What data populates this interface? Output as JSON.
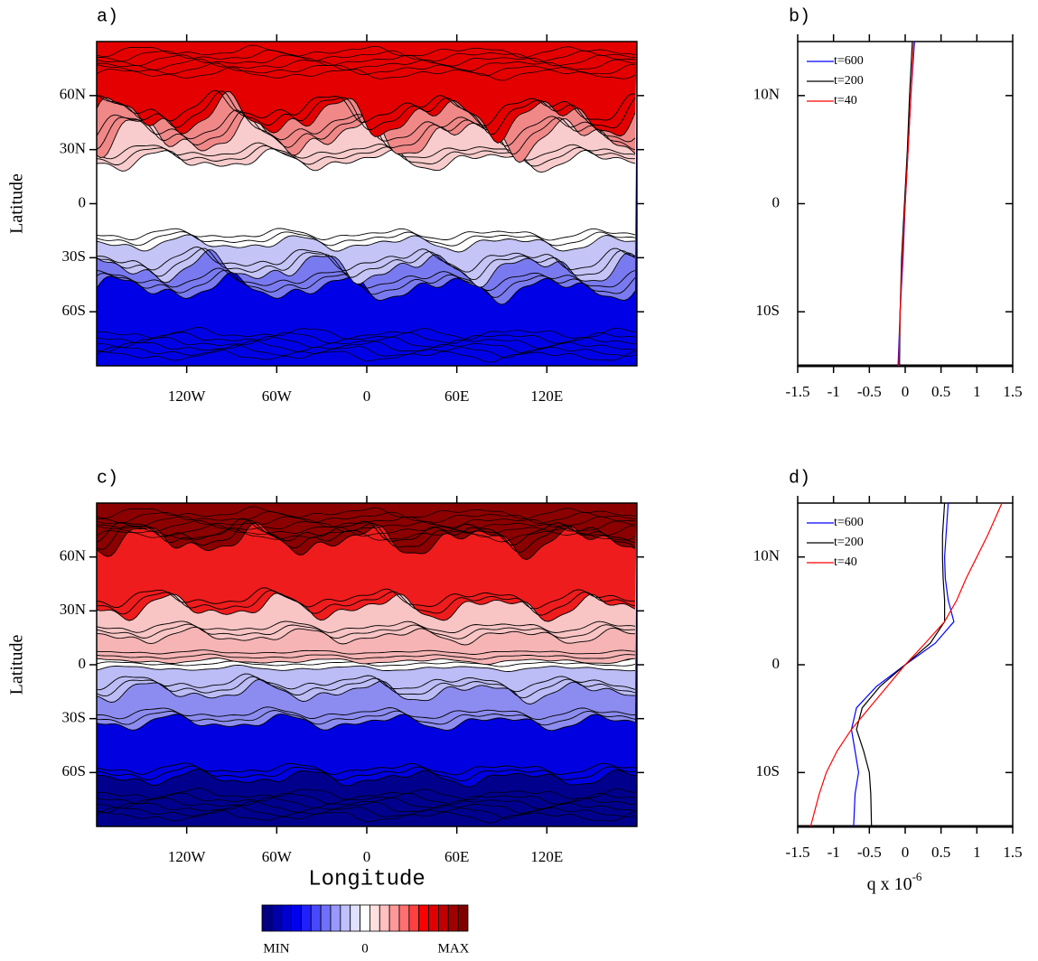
{
  "chart_data": [
    {
      "type": "map",
      "label": "a)",
      "ylabel": "Latitude",
      "xlim": [
        -180,
        180
      ],
      "ylim": [
        -90,
        90
      ],
      "xticks": [
        {
          "value": -120,
          "label": "120W"
        },
        {
          "value": -60,
          "label": "60W"
        },
        0,
        {
          "value": 60,
          "label": "60E"
        },
        {
          "value": 120,
          "label": "120E"
        }
      ],
      "yticks": [
        {
          "value": 60,
          "label": "60N"
        },
        {
          "value": 30,
          "label": "30N"
        },
        0,
        {
          "value": -30,
          "label": "30S"
        },
        {
          "value": -60,
          "label": "60S"
        }
      ]
    },
    {
      "type": "line",
      "label": "b)",
      "orientation": "horizontal",
      "legend": "upper left",
      "xlim": [
        -1.5,
        1.5
      ],
      "ylim": [
        -15,
        15
      ],
      "xticks": [
        -1.5,
        -1,
        -0.5,
        0,
        0.5,
        1,
        1.5
      ],
      "yticks": [
        {
          "value": 10,
          "label": "10N"
        },
        0,
        {
          "value": -10,
          "label": "10S"
        }
      ],
      "y": [
        -15,
        -10,
        -5,
        0,
        5,
        10,
        15
      ],
      "series": [
        {
          "name": "t=600",
          "color": "#0000ff",
          "values": [
            -0.1,
            -0.07,
            -0.03,
            0,
            0.04,
            0.08,
            0.13
          ]
        },
        {
          "name": "t=200",
          "color": "#000000",
          "values": [
            -0.08,
            -0.07,
            -0.05,
            -0.01,
            0.03,
            0.06,
            0.1
          ]
        },
        {
          "name": "t=40",
          "color": "#ff0000",
          "values": [
            -0.09,
            -0.07,
            -0.04,
            0,
            0.04,
            0.08,
            0.12
          ]
        }
      ]
    },
    {
      "type": "map",
      "label": "c)",
      "ylabel": "Latitude",
      "xlabel": "Longitude",
      "xlim": [
        -180,
        180
      ],
      "ylim": [
        -90,
        90
      ],
      "xticks": [
        {
          "value": -120,
          "label": "120W"
        },
        {
          "value": -60,
          "label": "60W"
        },
        0,
        {
          "value": 60,
          "label": "60E"
        },
        {
          "value": 120,
          "label": "120E"
        }
      ],
      "yticks": [
        {
          "value": 60,
          "label": "60N"
        },
        {
          "value": 30,
          "label": "30N"
        },
        0,
        {
          "value": -30,
          "label": "30S"
        },
        {
          "value": -60,
          "label": "60S"
        }
      ]
    },
    {
      "type": "line",
      "label": "d)",
      "orientation": "horizontal",
      "legend": "upper left",
      "xlabel": "q x 10",
      "xlabel_exponent": "-6",
      "xlim": [
        -1.5,
        1.5
      ],
      "ylim": [
        -15,
        15
      ],
      "xticks": [
        -1.5,
        -1,
        -0.5,
        0,
        0.5,
        1,
        1.5
      ],
      "yticks": [
        {
          "value": 10,
          "label": "10N"
        },
        0,
        {
          "value": -10,
          "label": "10S"
        }
      ],
      "y": [
        -15,
        -12,
        -10,
        -8,
        -6,
        -4,
        -2,
        0,
        2,
        4,
        6,
        8,
        10,
        12,
        15
      ],
      "series": [
        {
          "name": "t=600",
          "color": "#0000ff",
          "values": [
            -0.72,
            -0.7,
            -0.65,
            -0.7,
            -0.75,
            -0.68,
            -0.4,
            0,
            0.42,
            0.68,
            0.6,
            0.56,
            0.55,
            0.57,
            0.6
          ]
        },
        {
          "name": "t=200",
          "color": "#000000",
          "values": [
            -0.47,
            -0.48,
            -0.5,
            -0.58,
            -0.68,
            -0.6,
            -0.35,
            0,
            0.35,
            0.55,
            0.55,
            0.53,
            0.52,
            0.52,
            0.55
          ]
        },
        {
          "name": "t=40",
          "color": "#ff0000",
          "values": [
            -1.32,
            -1.2,
            -1.1,
            -0.95,
            -0.75,
            -0.5,
            -0.25,
            0,
            0.28,
            0.55,
            0.72,
            0.85,
            1.0,
            1.15,
            1.35
          ]
        }
      ]
    }
  ],
  "colorbar": {
    "labels": [
      "MIN",
      "0",
      "MAX"
    ],
    "colors": [
      "#000080",
      "#0000a8",
      "#0000d0",
      "#0000f0",
      "#2020ff",
      "#4848ff",
      "#7070ff",
      "#9898ff",
      "#c0c0ff",
      "#e0e0ff",
      "#ffffff",
      "#ffe0e0",
      "#ffc0c0",
      "#ff9898",
      "#ff7070",
      "#ff4040",
      "#ff0000",
      "#e00000",
      "#c00000",
      "#a00000",
      "#800000"
    ]
  }
}
